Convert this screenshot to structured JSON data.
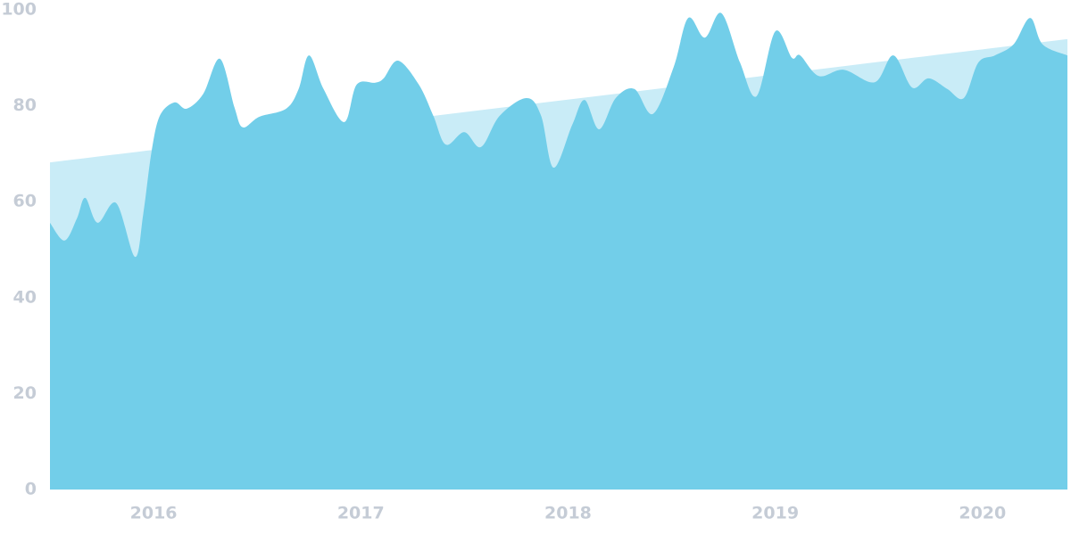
{
  "chart_data": {
    "type": "area",
    "xlim": [
      2015.5,
      2020.41
    ],
    "xticks": [
      2016,
      2017,
      2018,
      2019,
      2020
    ],
    "ylim": [
      0,
      100
    ],
    "yticks": [
      0,
      20,
      40,
      60,
      80,
      100
    ],
    "smooth": true,
    "series": [
      {
        "color": "#c9ecf7",
        "x": [
          2015.5,
          2020.41
        ],
        "values": [
          68.2,
          93.9
        ]
      },
      {
        "color": "#72cee9",
        "x": [
          2015.5,
          2015.57,
          2015.63,
          2015.67,
          2015.73,
          2015.82,
          2015.91,
          2015.95,
          2015.99,
          2016.03,
          2016.1,
          2016.16,
          2016.24,
          2016.32,
          2016.39,
          2016.43,
          2016.51,
          2016.64,
          2016.7,
          2016.75,
          2016.82,
          2016.92,
          2016.98,
          2017.07,
          2017.11,
          2017.18,
          2017.28,
          2017.35,
          2017.41,
          2017.5,
          2017.58,
          2017.67,
          2017.8,
          2017.87,
          2017.93,
          2018.02,
          2018.08,
          2018.15,
          2018.23,
          2018.32,
          2018.41,
          2018.51,
          2018.58,
          2018.66,
          2018.74,
          2018.83,
          2018.91,
          2019.0,
          2019.08,
          2019.12,
          2019.21,
          2019.33,
          2019.48,
          2019.57,
          2019.66,
          2019.74,
          2019.83,
          2019.91,
          2019.98,
          2020.06,
          2020.15,
          2020.23,
          2020.29,
          2020.41
        ],
        "values": [
          55.6,
          51.9,
          56.5,
          60.8,
          55.6,
          59.7,
          48.5,
          57.4,
          70.4,
          77.9,
          80.7,
          79.4,
          82.5,
          89.8,
          79.7,
          75.5,
          77.7,
          79.4,
          83.5,
          90.5,
          83.5,
          76.6,
          84.4,
          84.8,
          85.7,
          89.4,
          84.4,
          77.9,
          71.9,
          74.5,
          71.4,
          77.9,
          81.6,
          77.9,
          67.1,
          76.0,
          81.2,
          75.1,
          81.6,
          83.5,
          78.3,
          88.1,
          98.3,
          94.2,
          99.3,
          89.0,
          82.0,
          95.5,
          90.0,
          90.5,
          86.2,
          87.5,
          84.9,
          90.5,
          83.8,
          85.7,
          83.5,
          81.6,
          89.0,
          90.5,
          92.8,
          98.3,
          92.8,
          90.5
        ]
      }
    ]
  }
}
